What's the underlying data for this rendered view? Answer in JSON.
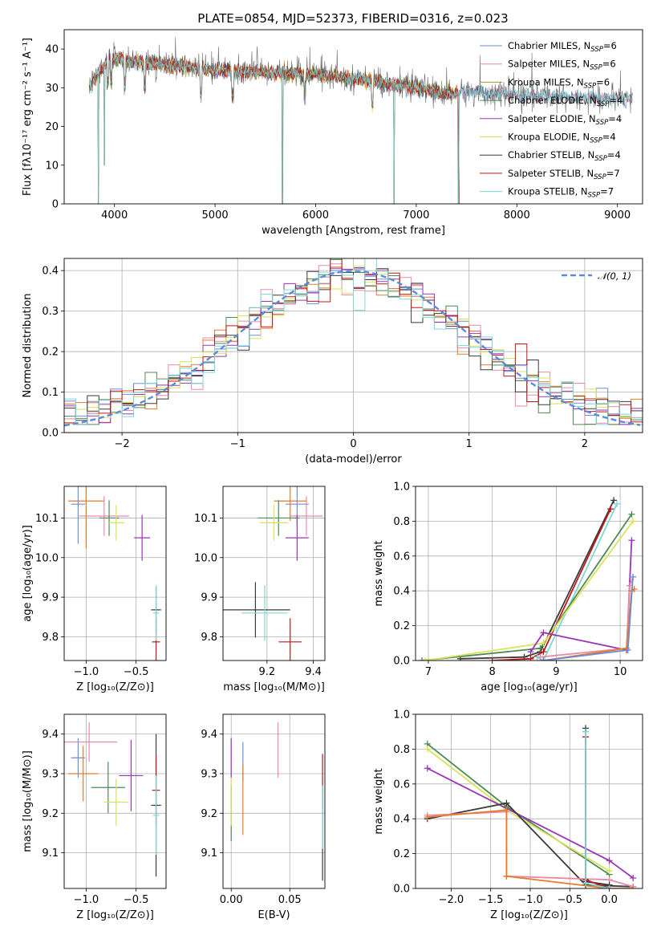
{
  "figure": {
    "title": "PLATE=0854, MJD=52373, FIBERID=0316, z=0.023"
  },
  "colors": {
    "Chabrier MILES": "#6a8fd8",
    "Salpeter MILES": "#e88aa9",
    "Kroupa MILES": "#a3961e",
    "Chabrier ELODIE": "#4d8a55",
    "Salpeter ELODIE": "#9a35b8",
    "Kroupa ELODIE": "#d9e35a",
    "Chabrier STELIB": "#3a3a3a",
    "Salpeter STELIB": "#c01818",
    "Kroupa STELIB": "#7ed6d6",
    "orange": "#e87a2a"
  },
  "chart_data": [
    {
      "id": "spectrum",
      "type": "line",
      "xlabel": "wavelength [Angstrom, rest frame]",
      "ylabel": "Flux [fλ10⁻¹⁷ erg cm⁻² s⁻¹ A⁻¹]",
      "xlim": [
        3500,
        9250
      ],
      "ylim": [
        0,
        45
      ],
      "xticks": [
        4000,
        5000,
        6000,
        7000,
        8000,
        9000
      ],
      "yticks": [
        0,
        10,
        20,
        30,
        40
      ],
      "spectrum_range": [
        3750,
        9150
      ],
      "continuum": [
        [
          3750,
          30
        ],
        [
          3950,
          38
        ],
        [
          4100,
          37
        ],
        [
          4500,
          36
        ],
        [
          5000,
          34.5
        ],
        [
          5500,
          34
        ],
        [
          6000,
          33.5
        ],
        [
          6500,
          32
        ],
        [
          7000,
          30
        ],
        [
          7300,
          28.5
        ],
        [
          7600,
          29
        ],
        [
          8000,
          28
        ],
        [
          8500,
          27.5
        ],
        [
          9000,
          27
        ],
        [
          9150,
          27
        ]
      ],
      "dropouts": [
        [
          3840,
          0
        ],
        [
          3900,
          10
        ],
        [
          5670,
          0
        ],
        [
          6780,
          0
        ],
        [
          7420,
          0
        ]
      ],
      "legend": {
        "placement": "upper-right",
        "entries": [
          {
            "name": "Chabrier MILES",
            "label": "Chabrier MILES, N",
            "sub": "SSP",
            "tail": "=6"
          },
          {
            "name": "Salpeter MILES",
            "label": "Salpeter MILES, N",
            "sub": "SSP",
            "tail": "=6"
          },
          {
            "name": "Kroupa MILES",
            "label": "Kroupa MILES, N",
            "sub": "SSP",
            "tail": "=6"
          },
          {
            "name": "Chabrier ELODIE",
            "label": "Chabrier ELODIE, N",
            "sub": "SSP",
            "tail": "=4"
          },
          {
            "name": "Salpeter ELODIE",
            "label": "Salpeter ELODIE, N",
            "sub": "SSP",
            "tail": "=4"
          },
          {
            "name": "Kroupa ELODIE",
            "label": "Kroupa ELODIE, N",
            "sub": "SSP",
            "tail": "=4"
          },
          {
            "name": "Chabrier STELIB",
            "label": "Chabrier STELIB, N",
            "sub": "SSP",
            "tail": "=4"
          },
          {
            "name": "Salpeter STELIB",
            "label": "Salpeter STELIB, N",
            "sub": "SSP",
            "tail": "=7"
          },
          {
            "name": "Kroupa STELIB",
            "label": "Kroupa STELIB, N",
            "sub": "SSP",
            "tail": "=7"
          }
        ]
      }
    },
    {
      "id": "residuals",
      "type": "histogram",
      "xlabel": "(data-model)/error",
      "ylabel": "Normed distribution",
      "xlim": [
        -2.5,
        2.5
      ],
      "ylim": [
        0,
        0.43
      ],
      "xticks": [
        -2,
        -1,
        0,
        1,
        2
      ],
      "yticks": [
        0.0,
        0.1,
        0.2,
        0.3,
        0.4
      ],
      "bin_width": 0.1,
      "gaussian_label": "𝒩(0, 1)",
      "legend": {
        "placement": "upper-right"
      }
    },
    {
      "id": "age_vs_Z",
      "type": "errorbar",
      "xlabel": "Z [log₁₀(Z/Z⊙)]",
      "ylabel": "age  [log₁₀(age/yr)]",
      "xlim": [
        -1.22,
        -0.2
      ],
      "ylim": [
        9.74,
        10.18
      ],
      "xticks": [
        -1.0,
        -0.5
      ],
      "yticks": [
        9.8,
        9.9,
        10.0,
        10.1
      ],
      "points": [
        {
          "c": "Chabrier MILES",
          "x": -1.08,
          "xe": 0.07,
          "y": 10.135,
          "ye": 0.1
        },
        {
          "c": "Salpeter MILES",
          "x": -0.82,
          "xe": 0.25,
          "y": 10.105,
          "ye": 0.05
        },
        {
          "c": "orange",
          "x": -1.0,
          "xe": 0.18,
          "y": 10.143,
          "ye": 0.12
        },
        {
          "c": "Chabrier ELODIE",
          "x": -0.77,
          "xe": 0.1,
          "y": 10.1,
          "ye": 0.045
        },
        {
          "c": "Salpeter ELODIE",
          "x": -0.44,
          "xe": 0.08,
          "y": 10.05,
          "ye": 0.058
        },
        {
          "c": "Kroupa ELODIE",
          "x": -0.7,
          "xe": 0.08,
          "y": 10.088,
          "ye": 0.045
        },
        {
          "c": "Chabrier STELIB",
          "x": -0.3,
          "xe": 0.05,
          "y": 9.868,
          "ye": 0.06
        },
        {
          "c": "Salpeter STELIB",
          "x": -0.3,
          "xe": 0.04,
          "y": 9.787,
          "ye": 0.06
        },
        {
          "c": "Kroupa STELIB",
          "x": -0.3,
          "xe": 0.03,
          "y": 9.86,
          "ye": 0.07
        }
      ]
    },
    {
      "id": "age_vs_mass",
      "type": "errorbar",
      "xlabel": "mass [log₁₀(M/M⊙)]",
      "ylabel": "",
      "xlim": [
        9.01,
        9.45
      ],
      "ylim": [
        9.74,
        10.18
      ],
      "xticks": [
        9.2,
        9.4
      ],
      "yticks": [
        9.8,
        9.9,
        10.0,
        10.1
      ],
      "points": [
        {
          "c": "Chabrier MILES",
          "x": 9.33,
          "xe": 0.05,
          "y": 10.135,
          "ye": 0.05
        },
        {
          "c": "Salpeter MILES",
          "x": 9.37,
          "xe": 0.07,
          "y": 10.105,
          "ye": 0.05
        },
        {
          "c": "orange",
          "x": 9.3,
          "xe": 0.07,
          "y": 10.143,
          "ye": 0.05
        },
        {
          "c": "Chabrier ELODIE",
          "x": 9.25,
          "xe": 0.09,
          "y": 10.1,
          "ye": 0.045
        },
        {
          "c": "Salpeter ELODIE",
          "x": 9.33,
          "xe": 0.05,
          "y": 10.05,
          "ye": 0.058
        },
        {
          "c": "Kroupa ELODIE",
          "x": 9.23,
          "xe": 0.06,
          "y": 10.088,
          "ye": 0.045
        },
        {
          "c": "Chabrier STELIB",
          "x": 9.15,
          "xe": 0.15,
          "y": 9.868,
          "ye": 0.07
        },
        {
          "c": "Salpeter STELIB",
          "x": 9.3,
          "xe": 0.05,
          "y": 9.787,
          "ye": 0.06
        },
        {
          "c": "Kroupa STELIB",
          "x": 9.19,
          "xe": 0.1,
          "y": 9.86,
          "ye": 0.07
        }
      ]
    },
    {
      "id": "weight_vs_age",
      "type": "line",
      "xlabel": "age  [log₁₀(age/yr)]",
      "ylabel": "mass weight",
      "xlim": [
        6.8,
        10.35
      ],
      "ylim": [
        0,
        1
      ],
      "xticks": [
        7,
        8,
        9,
        10
      ],
      "yticks": [
        0.0,
        0.2,
        0.4,
        0.6,
        0.8,
        1.0
      ],
      "series": [
        {
          "c": "Chabrier STELIB",
          "x": [
            7.5,
            8.5,
            8.75,
            9.9
          ],
          "y": [
            0.01,
            0.02,
            0.05,
            0.92
          ]
        },
        {
          "c": "Salpeter STELIB",
          "x": [
            8.0,
            8.6,
            8.8,
            9.85
          ],
          "y": [
            0.0,
            0.01,
            0.05,
            0.87
          ]
        },
        {
          "c": "Kroupa STELIB",
          "x": [
            8.7,
            8.8,
            9.95
          ],
          "y": [
            0.02,
            0.0,
            0.9
          ]
        },
        {
          "c": "Chabrier ELODIE",
          "x": [
            6.9,
            8.75,
            10.18
          ],
          "y": [
            0.0,
            0.07,
            0.84
          ]
        },
        {
          "c": "Kroupa ELODIE",
          "x": [
            6.95,
            8.8,
            10.2
          ],
          "y": [
            0.0,
            0.1,
            0.8
          ]
        },
        {
          "c": "Salpeter ELODIE",
          "x": [
            8.6,
            8.8,
            10.1,
            10.18
          ],
          "y": [
            0.05,
            0.16,
            0.06,
            0.69
          ]
        },
        {
          "c": "Salpeter MILES",
          "x": [
            8.75,
            10.1,
            10.15,
            10.2
          ],
          "y": [
            0.02,
            0.07,
            0.43,
            0.48
          ]
        },
        {
          "c": "orange",
          "x": [
            8.8,
            10.1,
            10.18,
            10.22
          ],
          "y": [
            0.0,
            0.07,
            0.4,
            0.41
          ]
        },
        {
          "c": "Chabrier MILES",
          "x": [
            8.8,
            10.12,
            10.2
          ],
          "y": [
            0.0,
            0.06,
            0.48
          ]
        }
      ]
    },
    {
      "id": "mass_vs_Z",
      "type": "errorbar",
      "xlabel": "Z [log₁₀(Z/Z⊙)]",
      "ylabel": "mass [log₁₀(M/M⊙)]",
      "xlim": [
        -1.22,
        -0.2
      ],
      "ylim": [
        9.01,
        9.45
      ],
      "xticks": [
        -1.0,
        -0.5
      ],
      "yticks": [
        9.1,
        9.2,
        9.3,
        9.4
      ],
      "points": [
        {
          "c": "Chabrier MILES",
          "x": -1.08,
          "xe": 0.07,
          "y": 9.34,
          "ye": 0.05
        },
        {
          "c": "Salpeter MILES",
          "x": -0.97,
          "xe": 0.28,
          "y": 9.38,
          "ye": 0.05
        },
        {
          "c": "orange",
          "x": -1.03,
          "xe": 0.15,
          "y": 9.3,
          "ye": 0.07
        },
        {
          "c": "Chabrier ELODIE",
          "x": -0.78,
          "xe": 0.17,
          "y": 9.265,
          "ye": 0.065
        },
        {
          "c": "Salpeter ELODIE",
          "x": -0.55,
          "xe": 0.12,
          "y": 9.295,
          "ye": 0.09
        },
        {
          "c": "Kroupa ELODIE",
          "x": -0.7,
          "xe": 0.12,
          "y": 9.228,
          "ye": 0.06
        },
        {
          "c": "Chabrier STELIB",
          "x": -0.3,
          "xe": 0.05,
          "y": 9.22,
          "ye": 0.18
        },
        {
          "c": "Salpeter STELIB",
          "x": -0.3,
          "xe": 0.04,
          "y": 9.258,
          "ye": 0.09
        },
        {
          "c": "Kroupa STELIB",
          "x": -0.3,
          "xe": 0.03,
          "y": 9.195,
          "ye": 0.1
        }
      ]
    },
    {
      "id": "mass_vs_ebv",
      "type": "errorbar",
      "xlabel": "E(B-V)",
      "ylabel": "",
      "xlim": [
        -0.007,
        0.08
      ],
      "ylim": [
        9.01,
        9.45
      ],
      "xticks": [
        0.0,
        0.05
      ],
      "yticks": [
        9.1,
        9.2,
        9.3,
        9.4
      ],
      "points": [
        {
          "c": "Salpeter ELODIE",
          "x": 0.0,
          "xe": 0,
          "y": 9.34,
          "ye": 0.05
        },
        {
          "c": "Chabrier ELODIE",
          "x": 0.0,
          "xe": 0,
          "y": 9.2,
          "ye": 0.07
        },
        {
          "c": "Kroupa ELODIE",
          "x": 0.0,
          "xe": 0,
          "y": 9.228,
          "ye": 0.06
        },
        {
          "c": "Chabrier MILES",
          "x": 0.01,
          "xe": 0,
          "y": 9.33,
          "ye": 0.05
        },
        {
          "c": "orange",
          "x": 0.01,
          "xe": 0,
          "y": 9.235,
          "ye": 0.09
        },
        {
          "c": "Salpeter MILES",
          "x": 0.04,
          "xe": 0,
          "y": 9.36,
          "ye": 0.07
        },
        {
          "c": "Salpeter STELIB",
          "x": 0.078,
          "xe": 0,
          "y": 9.28,
          "ye": 0.07
        },
        {
          "c": "Chabrier STELIB",
          "x": 0.078,
          "xe": 0,
          "y": 9.15,
          "ye": 0.12
        },
        {
          "c": "Kroupa STELIB",
          "x": 0.078,
          "xe": 0,
          "y": 9.19,
          "ye": 0.08
        }
      ]
    },
    {
      "id": "weight_vs_Z",
      "type": "line",
      "xlabel": "Z [log₁₀(Z/Z⊙)]",
      "ylabel": "mass weight",
      "xlim": [
        -2.45,
        0.42
      ],
      "ylim": [
        0,
        1
      ],
      "xticks": [
        -2.0,
        -1.5,
        -1.0,
        -0.5,
        0.0
      ],
      "yticks": [
        0.0,
        0.2,
        0.4,
        0.6,
        0.8,
        1.0
      ],
      "series": [
        {
          "c": "Chabrier ELODIE",
          "x": [
            -2.3,
            -1.3,
            0.0
          ],
          "y": [
            0.83,
            0.47,
            0.08
          ]
        },
        {
          "c": "Kroupa ELODIE",
          "x": [
            -2.3,
            -1.3,
            0.0
          ],
          "y": [
            0.8,
            0.45,
            0.1
          ]
        },
        {
          "c": "Salpeter ELODIE",
          "x": [
            -2.3,
            0.0,
            0.3
          ],
          "y": [
            0.69,
            0.16,
            0.06
          ]
        },
        {
          "c": "Chabrier STELIB",
          "x": [
            -2.3,
            -1.3,
            -0.3,
            0.3
          ],
          "y": [
            0.4,
            0.49,
            0.02,
            0.01
          ]
        },
        {
          "c": "Salpeter MILES",
          "x": [
            -2.3,
            -1.3,
            -1.3,
            0.0,
            0.3
          ],
          "y": [
            0.42,
            0.44,
            0.07,
            0.05,
            0.01
          ]
        },
        {
          "c": "orange",
          "x": [
            -2.3,
            -1.3,
            -1.3,
            0.0,
            0.3
          ],
          "y": [
            0.41,
            0.45,
            0.07,
            0.0,
            0.0
          ]
        },
        {
          "c": "Chabrier STELIB",
          "x": [
            -0.3,
            -0.3,
            0.0
          ],
          "y": [
            0.92,
            0.04,
            0.02
          ]
        },
        {
          "c": "Salpeter STELIB",
          "x": [
            -0.3,
            -0.3,
            0.0
          ],
          "y": [
            0.87,
            0.05,
            0.0
          ]
        },
        {
          "c": "Kroupa STELIB",
          "x": [
            -0.3,
            -0.3,
            0.0
          ],
          "y": [
            0.9,
            0.03,
            0.0
          ]
        }
      ]
    }
  ]
}
